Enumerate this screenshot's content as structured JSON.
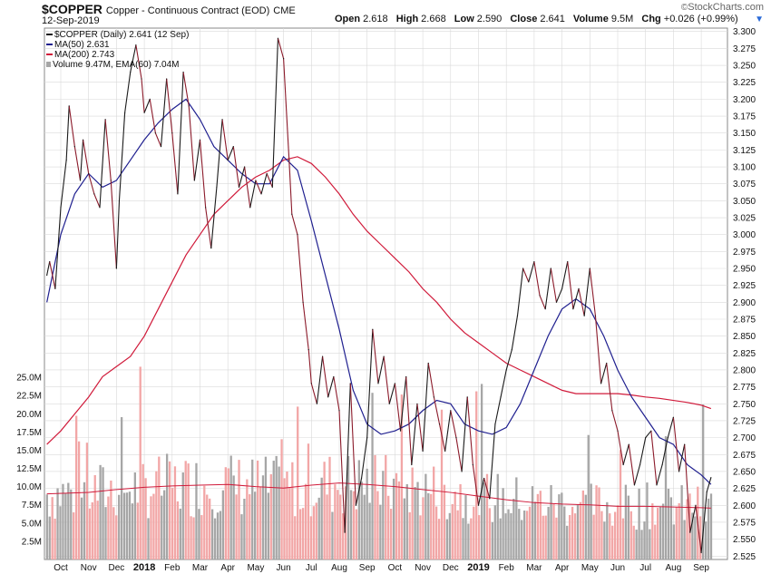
{
  "header": {
    "symbol": "$COPPER",
    "description": "Copper - Continuous Contract (EOD)",
    "exchange": "CME",
    "date": "12-Sep-2019",
    "open_label": "Open",
    "open": "2.618",
    "high_label": "High",
    "high": "2.668",
    "low_label": "Low",
    "low": "2.590",
    "close_label": "Close",
    "close": "2.641",
    "volume_label": "Volume",
    "volume": "9.5M",
    "chg_label": "Chg",
    "chg": "+0.026 (+0.99%)",
    "brand": "StockCharts.com",
    "brand_mark": "©"
  },
  "legend": {
    "price": "$COPPER (Daily) 2.641 (12 Sep)",
    "ma50": "MA(50) 2.631",
    "ma200": "MA(200) 2.743",
    "volume": "Volume 9.47M, EMA(60) 7.04M"
  },
  "colors": {
    "price": "#1a1a1a",
    "price_down": "#8b1a2a",
    "ma50": "#1f1f8f",
    "ma200": "#d01a3a",
    "vol_up": "#a6a6a6",
    "vol_down": "#f2a6a6",
    "vol_ema": "#d01a3a",
    "grid": "#d9d9d9"
  },
  "chart_data": {
    "type": "line",
    "title": "$COPPER Copper - Continuous Contract (EOD)",
    "x_labels": [
      "Oct",
      "Nov",
      "Dec",
      "2018",
      "Feb",
      "Mar",
      "Apr",
      "May",
      "Jun",
      "Jul",
      "Aug",
      "Sep",
      "Oct",
      "Nov",
      "Dec",
      "2019",
      "Feb",
      "Mar",
      "Apr",
      "May",
      "Jun",
      "Jul",
      "Aug",
      "Sep"
    ],
    "bold_x_labels": [
      "2018",
      "2019"
    ],
    "y_ticks": [
      "3.300",
      "3.275",
      "3.250",
      "3.225",
      "3.200",
      "3.175",
      "3.150",
      "3.125",
      "3.100",
      "3.075",
      "3.050",
      "3.025",
      "3.000",
      "2.975",
      "2.950",
      "2.925",
      "2.900",
      "2.875",
      "2.850",
      "2.825",
      "2.800",
      "2.775",
      "2.750",
      "2.725",
      "2.700",
      "2.675",
      "2.650",
      "2.625",
      "2.600",
      "2.575",
      "2.550",
      "2.525"
    ],
    "ylim": [
      2.52,
      3.305
    ],
    "volume_ticks": [
      "25.0M",
      "22.5M",
      "20.0M",
      "17.5M",
      "15.0M",
      "12.5M",
      "10.0M",
      "7.5M",
      "5.0M",
      "2.5M"
    ],
    "volume_lim": [
      0,
      27
    ],
    "x_months": [
      0,
      1,
      2,
      3,
      4,
      5,
      6,
      7,
      8,
      9,
      10,
      11,
      12,
      13,
      14,
      15,
      16,
      17,
      18,
      19,
      20,
      21,
      22,
      23
    ],
    "series": [
      {
        "name": "$COPPER (Daily)",
        "kind": "price",
        "x": [
          -0.5,
          -0.4,
          -0.2,
          0.0,
          0.2,
          0.3,
          0.5,
          0.7,
          0.8,
          1.0,
          1.2,
          1.4,
          1.6,
          1.8,
          2.0,
          2.1,
          2.3,
          2.5,
          2.7,
          2.9,
          3.0,
          3.2,
          3.4,
          3.6,
          3.8,
          4.0,
          4.2,
          4.4,
          4.6,
          4.8,
          5.0,
          5.2,
          5.4,
          5.6,
          5.8,
          6.0,
          6.2,
          6.4,
          6.6,
          6.8,
          7.0,
          7.2,
          7.4,
          7.6,
          7.8,
          8.0,
          8.2,
          8.3,
          8.5,
          8.7,
          8.9,
          9.0,
          9.2,
          9.4,
          9.6,
          9.8,
          10.0,
          10.2,
          10.4,
          10.6,
          10.8,
          11.0,
          11.2,
          11.4,
          11.6,
          11.8,
          12.0,
          12.2,
          12.4,
          12.6,
          12.8,
          13.0,
          13.2,
          13.4,
          13.6,
          13.8,
          14.0,
          14.2,
          14.4,
          14.6,
          14.8,
          15.0,
          15.2,
          15.4,
          15.6,
          15.8,
          16.0,
          16.2,
          16.4,
          16.6,
          16.8,
          17.0,
          17.2,
          17.4,
          17.6,
          17.8,
          18.0,
          18.2,
          18.4,
          18.6,
          18.8,
          19.0,
          19.2,
          19.4,
          19.6,
          19.8,
          20.0,
          20.2,
          20.4,
          20.6,
          20.8,
          21.0,
          21.2,
          21.4,
          21.6,
          21.8,
          22.0,
          22.2,
          22.4,
          22.6,
          22.8,
          23.0,
          23.2,
          23.35
        ],
        "values": [
          2.94,
          2.96,
          2.92,
          3.04,
          3.11,
          3.19,
          3.13,
          3.08,
          3.14,
          3.09,
          3.06,
          3.04,
          3.17,
          3.08,
          2.95,
          3.05,
          3.18,
          3.24,
          3.28,
          3.23,
          3.18,
          3.2,
          3.15,
          3.13,
          3.23,
          3.15,
          3.06,
          3.24,
          3.19,
          3.08,
          3.14,
          3.04,
          2.98,
          3.07,
          3.17,
          3.11,
          3.13,
          3.07,
          3.1,
          3.04,
          3.08,
          3.06,
          3.09,
          3.07,
          3.29,
          3.26,
          3.11,
          3.03,
          3.0,
          2.9,
          2.83,
          2.78,
          2.75,
          2.82,
          2.76,
          2.79,
          2.74,
          2.56,
          2.78,
          2.6,
          2.64,
          2.7,
          2.86,
          2.78,
          2.82,
          2.75,
          2.78,
          2.71,
          2.79,
          2.66,
          2.75,
          2.68,
          2.81,
          2.76,
          2.72,
          2.68,
          2.74,
          2.7,
          2.65,
          2.76,
          2.66,
          2.6,
          2.64,
          2.61,
          2.72,
          2.76,
          2.8,
          2.83,
          2.88,
          2.95,
          2.93,
          2.96,
          2.91,
          2.89,
          2.95,
          2.9,
          2.92,
          2.96,
          2.89,
          2.92,
          2.88,
          2.95,
          2.88,
          2.78,
          2.81,
          2.74,
          2.71,
          2.66,
          2.69,
          2.63,
          2.66,
          2.7,
          2.71,
          2.63,
          2.66,
          2.7,
          2.73,
          2.65,
          2.69,
          2.56,
          2.6,
          2.53,
          2.62,
          2.641
        ]
      },
      {
        "name": "MA(50)",
        "kind": "ma50",
        "x": [
          -0.5,
          0.0,
          0.5,
          1.0,
          1.5,
          2.0,
          2.5,
          3.0,
          3.5,
          4.0,
          4.5,
          5.0,
          5.5,
          6.0,
          6.5,
          7.0,
          7.5,
          8.0,
          8.5,
          9.0,
          9.5,
          10.0,
          10.5,
          11.0,
          11.5,
          12.0,
          12.5,
          13.0,
          13.5,
          14.0,
          14.5,
          15.0,
          15.5,
          16.0,
          16.5,
          17.0,
          17.5,
          18.0,
          18.5,
          19.0,
          19.5,
          20.0,
          20.5,
          21.0,
          21.5,
          22.0,
          22.5,
          23.0,
          23.35
        ],
        "values": [
          2.9,
          3.0,
          3.06,
          3.09,
          3.07,
          3.08,
          3.11,
          3.14,
          3.165,
          3.185,
          3.2,
          3.17,
          3.13,
          3.11,
          3.09,
          3.075,
          3.075,
          3.115,
          3.095,
          3.02,
          2.94,
          2.86,
          2.77,
          2.72,
          2.705,
          2.71,
          2.72,
          2.74,
          2.755,
          2.75,
          2.72,
          2.71,
          2.705,
          2.715,
          2.75,
          2.8,
          2.85,
          2.89,
          2.905,
          2.89,
          2.85,
          2.8,
          2.76,
          2.73,
          2.7,
          2.69,
          2.66,
          2.645,
          2.631
        ]
      },
      {
        "name": "MA(200)",
        "kind": "ma200",
        "x": [
          -0.5,
          0.0,
          0.5,
          1.0,
          1.5,
          2.0,
          2.5,
          3.0,
          3.5,
          4.0,
          4.5,
          5.0,
          5.5,
          6.0,
          6.5,
          7.0,
          7.5,
          8.0,
          8.5,
          9.0,
          9.5,
          10.0,
          10.5,
          11.0,
          11.5,
          12.0,
          12.5,
          13.0,
          13.5,
          14.0,
          14.5,
          15.0,
          15.5,
          16.0,
          16.5,
          17.0,
          17.5,
          18.0,
          18.5,
          19.0,
          19.5,
          20.0,
          20.5,
          21.0,
          21.5,
          22.0,
          22.5,
          23.0,
          23.35
        ],
        "values": [
          2.69,
          2.71,
          2.735,
          2.76,
          2.79,
          2.805,
          2.82,
          2.85,
          2.89,
          2.93,
          2.97,
          3.0,
          3.03,
          3.05,
          3.07,
          3.085,
          3.095,
          3.11,
          3.115,
          3.105,
          3.085,
          3.06,
          3.03,
          3.005,
          2.985,
          2.965,
          2.945,
          2.92,
          2.9,
          2.875,
          2.855,
          2.84,
          2.825,
          2.81,
          2.8,
          2.79,
          2.78,
          2.77,
          2.765,
          2.765,
          2.765,
          2.765,
          2.763,
          2.76,
          2.758,
          2.755,
          2.752,
          2.748,
          2.743
        ]
      }
    ],
    "volume_ema": {
      "x": [
        -0.5,
        1.0,
        2.0,
        3.0,
        4.0,
        5.0,
        6.0,
        7.0,
        8.0,
        9.0,
        10.0,
        11.0,
        12.0,
        13.0,
        14.0,
        15.0,
        16.0,
        17.0,
        18.0,
        19.0,
        20.0,
        21.0,
        22.0,
        23.0,
        23.35
      ],
      "values": [
        9.0,
        9.2,
        9.6,
        9.9,
        10.1,
        10.2,
        10.3,
        10.0,
        9.8,
        10.2,
        10.5,
        10.3,
        10.0,
        9.6,
        9.2,
        8.7,
        8.2,
        7.8,
        7.6,
        7.5,
        7.3,
        7.3,
        7.2,
        7.1,
        7.04
      ]
    }
  }
}
